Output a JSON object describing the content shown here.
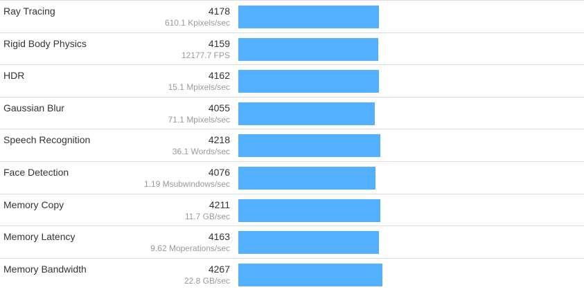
{
  "colors": {
    "bar": "#52b0ff",
    "divider": "#dddddd",
    "text": "#333333",
    "muted": "#999999"
  },
  "chart_data": {
    "type": "bar",
    "orientation": "horizontal",
    "categories": [
      "Ray Tracing",
      "Rigid Body Physics",
      "HDR",
      "Gaussian Blur",
      "Speech Recognition",
      "Face Detection",
      "Memory Copy",
      "Memory Latency",
      "Memory Bandwidth"
    ],
    "values": [
      4178,
      4159,
      4162,
      4055,
      4218,
      4076,
      4211,
      4163,
      4267
    ],
    "xlim": [
      0,
      10250
    ]
  },
  "rows": [
    {
      "name": "Ray Tracing",
      "score": "4178",
      "detail": "610.1 Kpixels/sec"
    },
    {
      "name": "Rigid Body Physics",
      "score": "4159",
      "detail": "12177.7 FPS"
    },
    {
      "name": "HDR",
      "score": "4162",
      "detail": "15.1 Mpixels/sec"
    },
    {
      "name": "Gaussian Blur",
      "score": "4055",
      "detail": "71.1 Mpixels/sec"
    },
    {
      "name": "Speech Recognition",
      "score": "4218",
      "detail": "36.1 Words/sec"
    },
    {
      "name": "Face Detection",
      "score": "4076",
      "detail": "1.19 Msubwindows/sec"
    },
    {
      "name": "Memory Copy",
      "score": "4211",
      "detail": "11.7 GB/sec"
    },
    {
      "name": "Memory Latency",
      "score": "4163",
      "detail": "9.62 Moperations/sec"
    },
    {
      "name": "Memory Bandwidth",
      "score": "4267",
      "detail": "22.8 GB/sec"
    }
  ]
}
